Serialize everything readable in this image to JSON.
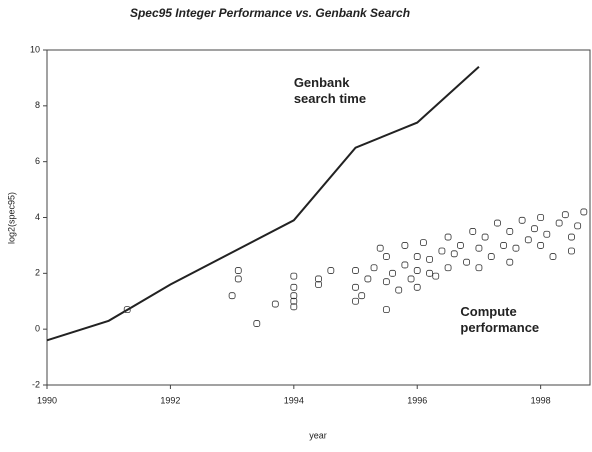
{
  "chart_data": {
    "type": "line",
    "title": "Spec95 Integer Performance vs. Genbank Search",
    "x_label": "year",
    "y_label": "log2(spec95)",
    "xlim": [
      1990,
      1998.8
    ],
    "xticks": [
      1990,
      1992,
      1994,
      1996,
      1998
    ],
    "ylim": [
      -2,
      10
    ],
    "yticks": [
      -2,
      0,
      2,
      4,
      6,
      8,
      10
    ],
    "annotations": [
      {
        "lines": [
          "Genbank",
          "search time"
        ],
        "x": 1994,
        "y": 8.8
      },
      {
        "lines": [
          "Compute",
          "performance"
        ],
        "x": 1996.7,
        "y": 0.6
      }
    ],
    "series": [
      {
        "name": "Genbank search time",
        "type": "line",
        "color": "#222222",
        "x": [
          1990,
          1991,
          1992,
          1994,
          1995,
          1996,
          1997
        ],
        "values": [
          -0.4,
          0.3,
          1.6,
          3.9,
          6.5,
          7.4,
          9.4
        ]
      },
      {
        "name": "Compute performance",
        "type": "scatter",
        "color": "#333333",
        "x": [
          1991.3,
          1993.0,
          1993.1,
          1993.1,
          1993.4,
          1993.7,
          1994.0,
          1994.0,
          1994.0,
          1994.0,
          1994.0,
          1994.4,
          1994.4,
          1994.6,
          1995.0,
          1995.0,
          1995.0,
          1995.1,
          1995.2,
          1995.3,
          1995.4,
          1995.5,
          1995.5,
          1995.5,
          1995.6,
          1995.7,
          1995.8,
          1995.8,
          1995.9,
          1996.0,
          1996.0,
          1996.0,
          1996.1,
          1996.2,
          1996.2,
          1996.3,
          1996.4,
          1996.5,
          1996.5,
          1996.6,
          1996.7,
          1996.8,
          1996.9,
          1997.0,
          1997.0,
          1997.1,
          1997.2,
          1997.3,
          1997.4,
          1997.5,
          1997.5,
          1997.6,
          1997.7,
          1997.8,
          1997.9,
          1998.0,
          1998.0,
          1998.1,
          1998.2,
          1998.3,
          1998.4,
          1998.5,
          1998.5,
          1998.6,
          1998.7
        ],
        "values": [
          0.7,
          1.2,
          1.8,
          2.1,
          0.2,
          0.9,
          0.8,
          1.2,
          1.5,
          1.9,
          1.0,
          1.6,
          1.8,
          2.1,
          1.0,
          1.5,
          2.1,
          1.2,
          1.8,
          2.2,
          2.9,
          0.7,
          1.7,
          2.6,
          2.0,
          1.4,
          2.3,
          3.0,
          1.8,
          2.1,
          1.5,
          2.6,
          3.1,
          2.0,
          2.5,
          1.9,
          2.8,
          3.3,
          2.2,
          2.7,
          3.0,
          2.4,
          3.5,
          2.9,
          2.2,
          3.3,
          2.6,
          3.8,
          3.0,
          2.4,
          3.5,
          2.9,
          3.9,
          3.2,
          3.6,
          3.0,
          4.0,
          3.4,
          2.6,
          3.8,
          4.1,
          3.3,
          2.8,
          3.7,
          4.2
        ]
      }
    ]
  }
}
